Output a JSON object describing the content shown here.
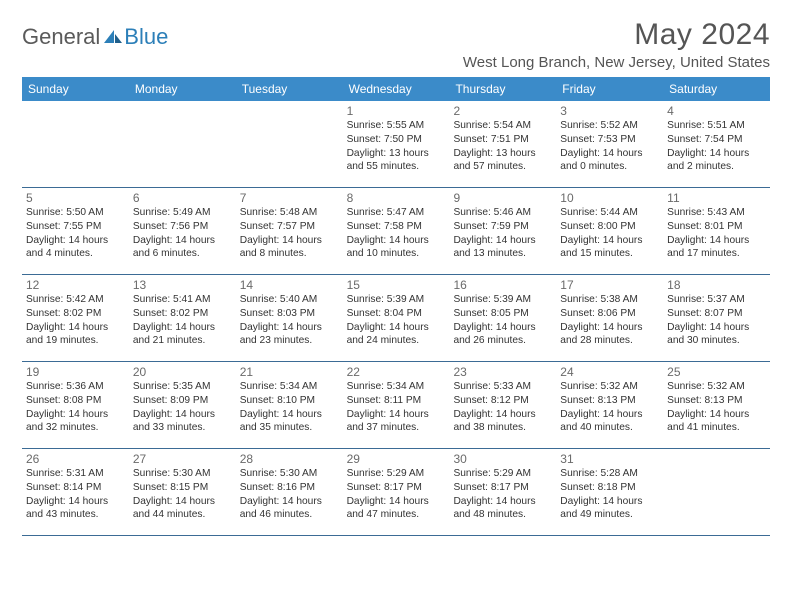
{
  "logo": {
    "text1": "General",
    "text2": "Blue"
  },
  "title": "May 2024",
  "location": "West Long Branch, New Jersey, United States",
  "colors": {
    "header_bg": "#3b8bc9",
    "header_text": "#ffffff",
    "border": "#3b6b95",
    "text": "#333333",
    "muted": "#6a6a6a",
    "logo_gray": "#5a5a5a",
    "logo_blue": "#2c7fb8",
    "background": "#ffffff"
  },
  "dayNames": [
    "Sunday",
    "Monday",
    "Tuesday",
    "Wednesday",
    "Thursday",
    "Friday",
    "Saturday"
  ],
  "weeks": [
    [
      null,
      null,
      null,
      {
        "n": "1",
        "sr": "5:55 AM",
        "ss": "7:50 PM",
        "dl": "13 hours and 55 minutes."
      },
      {
        "n": "2",
        "sr": "5:54 AM",
        "ss": "7:51 PM",
        "dl": "13 hours and 57 minutes."
      },
      {
        "n": "3",
        "sr": "5:52 AM",
        "ss": "7:53 PM",
        "dl": "14 hours and 0 minutes."
      },
      {
        "n": "4",
        "sr": "5:51 AM",
        "ss": "7:54 PM",
        "dl": "14 hours and 2 minutes."
      }
    ],
    [
      {
        "n": "5",
        "sr": "5:50 AM",
        "ss": "7:55 PM",
        "dl": "14 hours and 4 minutes."
      },
      {
        "n": "6",
        "sr": "5:49 AM",
        "ss": "7:56 PM",
        "dl": "14 hours and 6 minutes."
      },
      {
        "n": "7",
        "sr": "5:48 AM",
        "ss": "7:57 PM",
        "dl": "14 hours and 8 minutes."
      },
      {
        "n": "8",
        "sr": "5:47 AM",
        "ss": "7:58 PM",
        "dl": "14 hours and 10 minutes."
      },
      {
        "n": "9",
        "sr": "5:46 AM",
        "ss": "7:59 PM",
        "dl": "14 hours and 13 minutes."
      },
      {
        "n": "10",
        "sr": "5:44 AM",
        "ss": "8:00 PM",
        "dl": "14 hours and 15 minutes."
      },
      {
        "n": "11",
        "sr": "5:43 AM",
        "ss": "8:01 PM",
        "dl": "14 hours and 17 minutes."
      }
    ],
    [
      {
        "n": "12",
        "sr": "5:42 AM",
        "ss": "8:02 PM",
        "dl": "14 hours and 19 minutes."
      },
      {
        "n": "13",
        "sr": "5:41 AM",
        "ss": "8:02 PM",
        "dl": "14 hours and 21 minutes."
      },
      {
        "n": "14",
        "sr": "5:40 AM",
        "ss": "8:03 PM",
        "dl": "14 hours and 23 minutes."
      },
      {
        "n": "15",
        "sr": "5:39 AM",
        "ss": "8:04 PM",
        "dl": "14 hours and 24 minutes."
      },
      {
        "n": "16",
        "sr": "5:39 AM",
        "ss": "8:05 PM",
        "dl": "14 hours and 26 minutes."
      },
      {
        "n": "17",
        "sr": "5:38 AM",
        "ss": "8:06 PM",
        "dl": "14 hours and 28 minutes."
      },
      {
        "n": "18",
        "sr": "5:37 AM",
        "ss": "8:07 PM",
        "dl": "14 hours and 30 minutes."
      }
    ],
    [
      {
        "n": "19",
        "sr": "5:36 AM",
        "ss": "8:08 PM",
        "dl": "14 hours and 32 minutes."
      },
      {
        "n": "20",
        "sr": "5:35 AM",
        "ss": "8:09 PM",
        "dl": "14 hours and 33 minutes."
      },
      {
        "n": "21",
        "sr": "5:34 AM",
        "ss": "8:10 PM",
        "dl": "14 hours and 35 minutes."
      },
      {
        "n": "22",
        "sr": "5:34 AM",
        "ss": "8:11 PM",
        "dl": "14 hours and 37 minutes."
      },
      {
        "n": "23",
        "sr": "5:33 AM",
        "ss": "8:12 PM",
        "dl": "14 hours and 38 minutes."
      },
      {
        "n": "24",
        "sr": "5:32 AM",
        "ss": "8:13 PM",
        "dl": "14 hours and 40 minutes."
      },
      {
        "n": "25",
        "sr": "5:32 AM",
        "ss": "8:13 PM",
        "dl": "14 hours and 41 minutes."
      }
    ],
    [
      {
        "n": "26",
        "sr": "5:31 AM",
        "ss": "8:14 PM",
        "dl": "14 hours and 43 minutes."
      },
      {
        "n": "27",
        "sr": "5:30 AM",
        "ss": "8:15 PM",
        "dl": "14 hours and 44 minutes."
      },
      {
        "n": "28",
        "sr": "5:30 AM",
        "ss": "8:16 PM",
        "dl": "14 hours and 46 minutes."
      },
      {
        "n": "29",
        "sr": "5:29 AM",
        "ss": "8:17 PM",
        "dl": "14 hours and 47 minutes."
      },
      {
        "n": "30",
        "sr": "5:29 AM",
        "ss": "8:17 PM",
        "dl": "14 hours and 48 minutes."
      },
      {
        "n": "31",
        "sr": "5:28 AM",
        "ss": "8:18 PM",
        "dl": "14 hours and 49 minutes."
      },
      null
    ]
  ],
  "labels": {
    "sunrise": "Sunrise:",
    "sunset": "Sunset:",
    "daylight": "Daylight:"
  }
}
